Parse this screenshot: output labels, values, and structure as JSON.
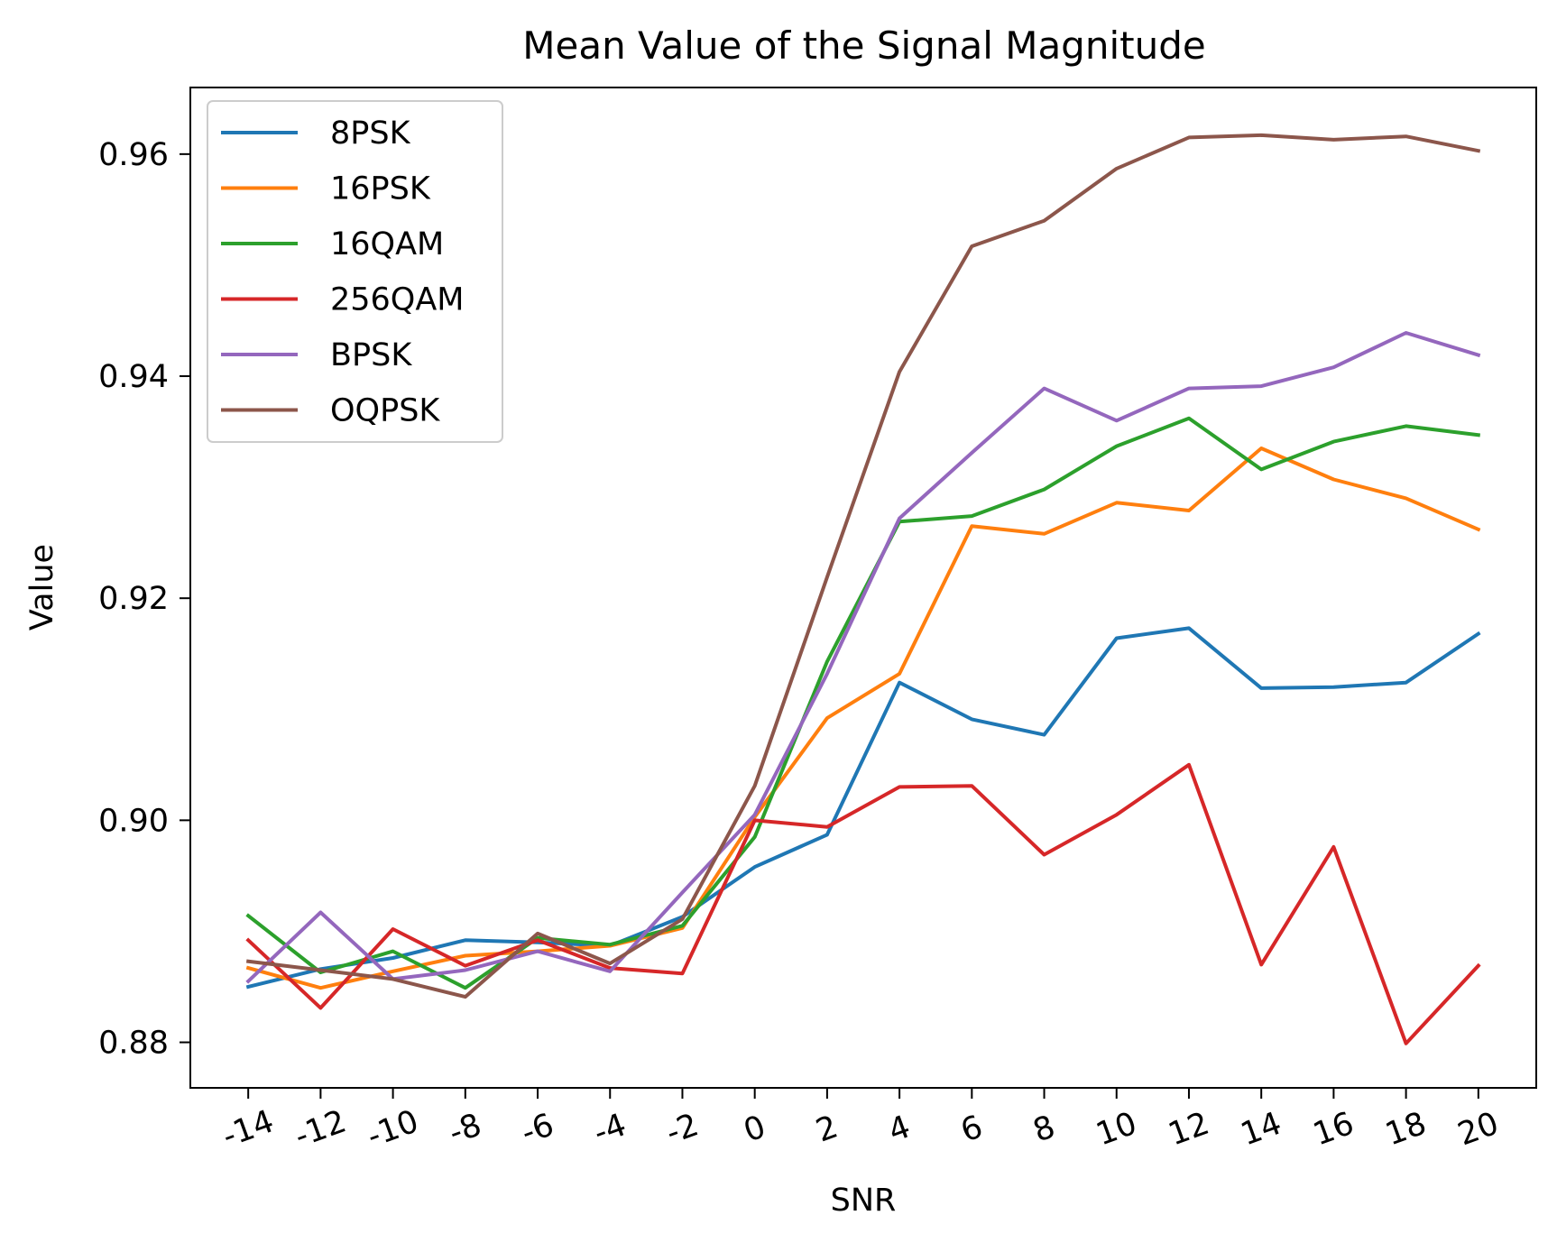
{
  "chart_data": {
    "type": "line",
    "title": "Mean Value of the Signal Magnitude",
    "xlabel": "SNR",
    "ylabel": "Value",
    "x": [
      -14,
      -12,
      -10,
      -8,
      -6,
      -4,
      -2,
      0,
      2,
      4,
      6,
      8,
      10,
      12,
      14,
      16,
      18,
      20
    ],
    "x_tick_labels": [
      "-14",
      "-12",
      "-10",
      "-8",
      "-6",
      "-4",
      "-2",
      "0",
      "2",
      "4",
      "6",
      "8",
      "10",
      "12",
      "14",
      "16",
      "18",
      "20"
    ],
    "y_ticks": [
      0.88,
      0.9,
      0.92,
      0.94,
      0.96
    ],
    "y_tick_labels": [
      "0.88",
      "0.90",
      "0.92",
      "0.94",
      "0.96"
    ],
    "xlim": [
      -15.6,
      21.6
    ],
    "ylim": [
      0.8759,
      0.966
    ],
    "grid": false,
    "legend_position": "top-left",
    "series": [
      {
        "name": "8PSK",
        "color": "#1f77b4",
        "values": [
          0.885,
          0.8866,
          0.8876,
          0.8892,
          0.889,
          0.8887,
          0.8913,
          0.8958,
          0.8987,
          0.9124,
          0.9091,
          0.9077,
          0.9164,
          0.9173,
          0.9119,
          0.912,
          0.9124,
          0.9168
        ]
      },
      {
        "name": "16PSK",
        "color": "#ff7f0e",
        "values": [
          0.8867,
          0.8849,
          0.8864,
          0.8878,
          0.8882,
          0.8887,
          0.8903,
          0.9003,
          0.9092,
          0.9132,
          0.9265,
          0.9258,
          0.9286,
          0.9279,
          0.9335,
          0.9307,
          0.929,
          0.9262
        ]
      },
      {
        "name": "16QAM",
        "color": "#2ca02c",
        "values": [
          0.8914,
          0.8863,
          0.8882,
          0.8849,
          0.8894,
          0.8888,
          0.8905,
          0.8985,
          0.9143,
          0.9269,
          0.9274,
          0.9298,
          0.9337,
          0.9362,
          0.9316,
          0.9341,
          0.9355,
          0.9347
        ]
      },
      {
        "name": "256QAM",
        "color": "#d62728",
        "values": [
          0.8892,
          0.8831,
          0.8902,
          0.8869,
          0.8892,
          0.8867,
          0.8862,
          0.9,
          0.8994,
          0.903,
          0.9031,
          0.8969,
          0.9005,
          0.905,
          0.887,
          0.8976,
          0.8799,
          0.8869
        ]
      },
      {
        "name": "BPSK",
        "color": "#9467bd",
        "values": [
          0.8855,
          0.8917,
          0.8857,
          0.8865,
          0.8882,
          0.8864,
          0.8935,
          0.9005,
          0.9132,
          0.9272,
          0.9331,
          0.9389,
          0.936,
          0.9389,
          0.9391,
          0.9408,
          0.9439,
          0.9419
        ]
      },
      {
        "name": "OQPSK",
        "color": "#8c564b",
        "values": [
          0.8873,
          0.8865,
          0.8857,
          0.8841,
          0.8898,
          0.8871,
          0.8911,
          0.9031,
          0.9219,
          0.9404,
          0.9517,
          0.954,
          0.9587,
          0.9615,
          0.9617,
          0.9613,
          0.9616,
          0.9603
        ]
      }
    ]
  }
}
